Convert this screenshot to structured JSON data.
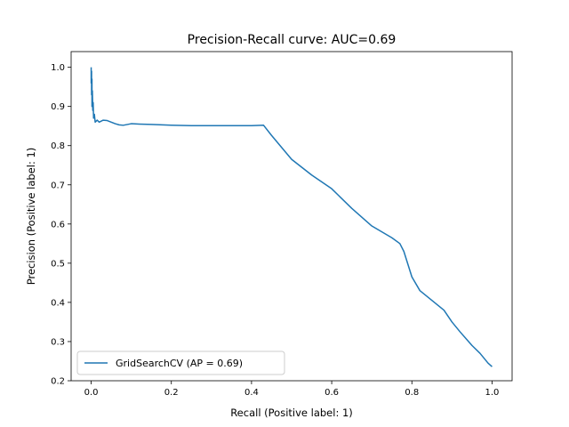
{
  "chart_data": {
    "type": "line",
    "title": "Precision-Recall curve: AUC=0.69",
    "xlabel": "Recall (Positive label: 1)",
    "ylabel": "Precision (Positive label: 1)",
    "xlim": [
      -0.05,
      1.05
    ],
    "ylim": [
      0.2,
      1.04
    ],
    "xticks": [
      0.0,
      0.2,
      0.4,
      0.6,
      0.8,
      1.0
    ],
    "xtick_labels": [
      "0.0",
      "0.2",
      "0.4",
      "0.6",
      "0.8",
      "1.0"
    ],
    "yticks": [
      0.2,
      0.3,
      0.4,
      0.5,
      0.6,
      0.7,
      0.8,
      0.9,
      1.0
    ],
    "ytick_labels": [
      "0.2",
      "0.3",
      "0.4",
      "0.5",
      "0.6",
      "0.7",
      "0.8",
      "0.9",
      "1.0"
    ],
    "grid": false,
    "legend_position": "lower-left",
    "series": [
      {
        "name": "GridSearchCV (AP = 0.69)",
        "color": "#1f77b4",
        "x": [
          0.0,
          0.0,
          0.001,
          0.001,
          0.002,
          0.002,
          0.003,
          0.004,
          0.005,
          0.006,
          0.008,
          0.01,
          0.015,
          0.02,
          0.03,
          0.04,
          0.05,
          0.06,
          0.07,
          0.08,
          0.1,
          0.12,
          0.15,
          0.2,
          0.25,
          0.3,
          0.35,
          0.4,
          0.43,
          0.45,
          0.5,
          0.55,
          0.6,
          0.65,
          0.7,
          0.75,
          0.77,
          0.78,
          0.8,
          0.82,
          0.85,
          0.88,
          0.9,
          0.92,
          0.95,
          0.97,
          0.99,
          1.0
        ],
        "y": [
          1.0,
          0.96,
          0.99,
          0.93,
          0.97,
          0.9,
          0.94,
          0.89,
          0.91,
          0.87,
          0.88,
          0.86,
          0.865,
          0.86,
          0.865,
          0.864,
          0.86,
          0.856,
          0.853,
          0.852,
          0.856,
          0.855,
          0.854,
          0.852,
          0.851,
          0.851,
          0.851,
          0.851,
          0.852,
          0.826,
          0.765,
          0.725,
          0.69,
          0.64,
          0.595,
          0.565,
          0.55,
          0.53,
          0.465,
          0.43,
          0.405,
          0.38,
          0.35,
          0.325,
          0.29,
          0.27,
          0.245,
          0.236
        ]
      }
    ]
  }
}
